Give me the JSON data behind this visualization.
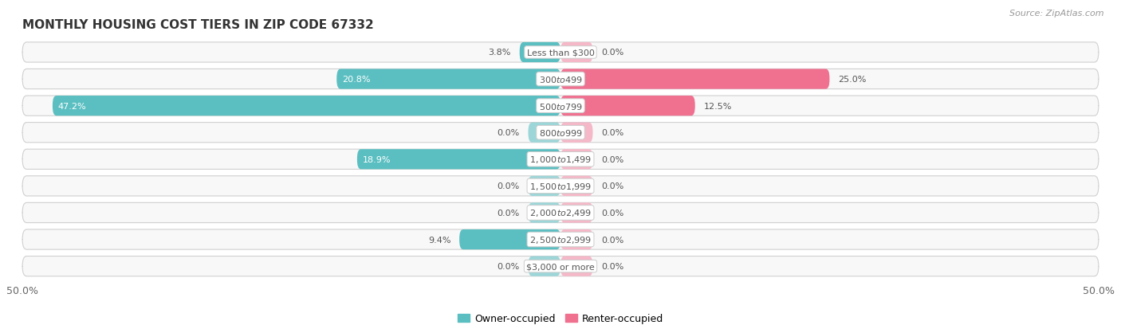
{
  "title": "MONTHLY HOUSING COST TIERS IN ZIP CODE 67332",
  "source": "Source: ZipAtlas.com",
  "categories": [
    "Less than $300",
    "$300 to $499",
    "$500 to $799",
    "$800 to $999",
    "$1,000 to $1,499",
    "$1,500 to $1,999",
    "$2,000 to $2,499",
    "$2,500 to $2,999",
    "$3,000 or more"
  ],
  "owner_values": [
    3.8,
    20.8,
    47.2,
    0.0,
    18.9,
    0.0,
    0.0,
    9.4,
    0.0
  ],
  "renter_values": [
    0.0,
    25.0,
    12.5,
    0.0,
    0.0,
    0.0,
    0.0,
    0.0,
    0.0
  ],
  "owner_color": "#5bbfc2",
  "owner_color_light": "#9dd6d8",
  "renter_color": "#f07090",
  "renter_color_light": "#f5b8c8",
  "bg_color": "#f0f0f0",
  "row_bg": "#f8f8f8",
  "row_border": "#d0d0d0",
  "label_color": "#555555",
  "value_color": "#555555",
  "white_label_color": "#ffffff",
  "max_val": 50.0,
  "min_stub": 3.0,
  "legend_labels": [
    "Owner-occupied",
    "Renter-occupied"
  ]
}
